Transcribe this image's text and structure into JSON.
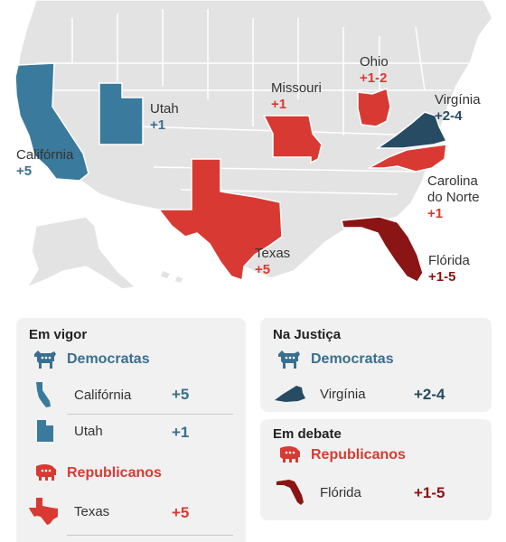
{
  "colors": {
    "democrat": "#3a7a9c",
    "republican": "#d83a33",
    "republican_dark": "#8b1414",
    "court_democrat": "#264b63",
    "base_state": "#e3e3e3",
    "border": "#ffffff"
  },
  "map_labels": {
    "california": {
      "name": "Califórnia",
      "value": "+5"
    },
    "utah": {
      "name": "Utah",
      "value": "+1"
    },
    "missouri": {
      "name": "Missouri",
      "value": "+1"
    },
    "ohio": {
      "name": "Ohio",
      "value": "+1-2"
    },
    "virginia": {
      "name": "Virgínia",
      "value": "+2-4"
    },
    "north_carolina": {
      "name_line1": "Carolina",
      "name_line2": "do Norte",
      "value": "+1"
    },
    "texas": {
      "name": "Texas",
      "value": "+5"
    },
    "florida": {
      "name": "Flórida",
      "value": "+1-5"
    }
  },
  "legend": {
    "in_force": {
      "title": "Em vigor",
      "democrats": {
        "party": "Democratas",
        "icon": "donkey-icon",
        "states": [
          {
            "name": "Califórnia",
            "value": "+5",
            "icon": "california-icon"
          },
          {
            "name": "Utah",
            "value": "+1",
            "icon": "utah-icon"
          }
        ]
      },
      "republicans": {
        "party": "Republicanos",
        "icon": "elephant-icon",
        "states": [
          {
            "name": "Texas",
            "value": "+5",
            "icon": "texas-icon"
          }
        ]
      }
    },
    "in_court": {
      "title": "Na Justiça",
      "democrats": {
        "party": "Democratas",
        "icon": "donkey-icon",
        "states": [
          {
            "name": "Virgínia",
            "value": "+2-4",
            "icon": "virginia-icon"
          }
        ]
      }
    },
    "in_debate": {
      "title": "Em debate",
      "republicans": {
        "party": "Republicanos",
        "icon": "elephant-icon",
        "states": [
          {
            "name": "Flórida",
            "value": "+1-5",
            "icon": "florida-icon"
          }
        ]
      }
    }
  }
}
